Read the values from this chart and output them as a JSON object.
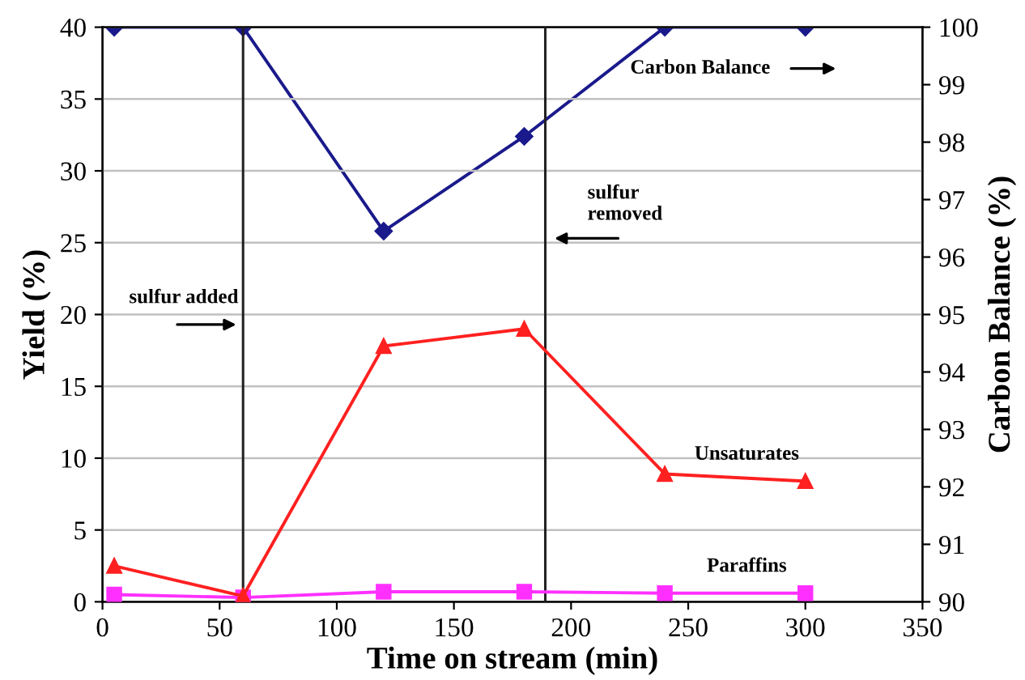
{
  "chart_data": {
    "type": "line",
    "xlabel": "Time on stream (min)",
    "ylabel": "Yield (%)",
    "y2label": "Carbon Balance (%)",
    "xlim": [
      0,
      350
    ],
    "xticks": [
      0,
      50,
      100,
      150,
      200,
      250,
      300,
      350
    ],
    "ylim": [
      0,
      40
    ],
    "yticks": [
      0,
      5,
      10,
      15,
      20,
      25,
      30,
      35,
      40
    ],
    "y2lim": [
      90,
      100
    ],
    "y2ticks": [
      90,
      91,
      92,
      93,
      94,
      95,
      96,
      97,
      98,
      99,
      100
    ],
    "grid": "y",
    "line_style": "solid",
    "series": [
      {
        "name": "Carbon Balance",
        "color": "#1a1a8c",
        "axis": "y2",
        "marker": "diamond",
        "x": [
          5,
          60,
          120,
          180,
          240,
          300
        ],
        "values": [
          100,
          100,
          96.45,
          98.1,
          100,
          100
        ]
      },
      {
        "name": "Unsaturates",
        "color": "#ff2020",
        "marker": "triangle",
        "x": [
          5,
          60,
          120,
          180,
          240,
          300
        ],
        "values": [
          2.5,
          0.4,
          17.8,
          19.0,
          8.9,
          8.4
        ]
      },
      {
        "name": "Paraffins",
        "color": "#ff30ff",
        "marker": "square",
        "x": [
          5,
          60,
          120,
          180,
          240,
          300
        ],
        "values": [
          0.5,
          0.3,
          0.7,
          0.7,
          0.6,
          0.6
        ]
      }
    ],
    "ref_lines": [
      {
        "axis": "x",
        "value": 60,
        "label": "sulfur added",
        "color": "#222222"
      },
      {
        "axis": "x",
        "value": 189,
        "label": "sulfur\nremoved",
        "color": "#222222"
      }
    ]
  }
}
